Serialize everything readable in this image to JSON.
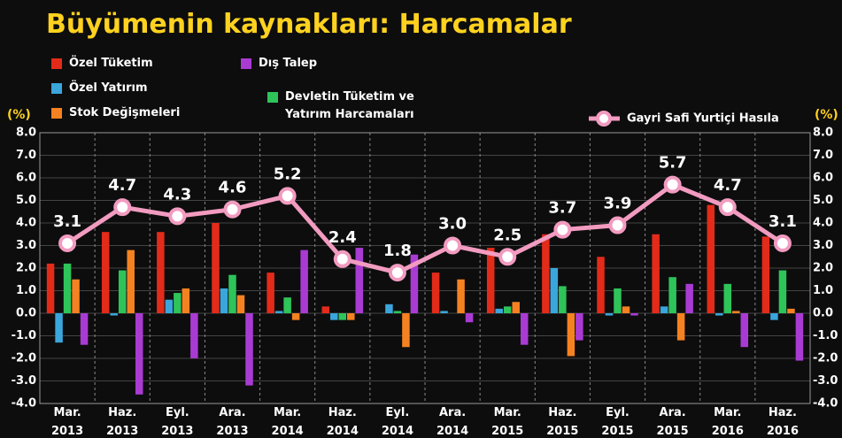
{
  "chart_data": {
    "type": "bar_line",
    "title": "Büyümenin kaynakları: Harcamalar",
    "y_unit": "(%)",
    "categories": [
      "Mar. 2013",
      "Haz. 2013",
      "Eyl. 2013",
      "Ara. 2013",
      "Mar. 2014",
      "Haz. 2014",
      "Eyl. 2014",
      "Ara. 2014",
      "Mar. 2015",
      "Haz. 2015",
      "Eyl. 2015",
      "Ara. 2015",
      "Mar. 2016",
      "Haz. 2016"
    ],
    "ylim": [
      -4,
      8
    ],
    "yticks": [
      {
        "value": -4,
        "label": "-4.0"
      },
      {
        "value": -3,
        "label": "-3.0"
      },
      {
        "value": -2,
        "label": "-2.0"
      },
      {
        "value": -1,
        "label": "-1.0"
      },
      {
        "value": 0,
        "label": "0.0"
      },
      {
        "value": 1,
        "label": "1.0"
      },
      {
        "value": 2,
        "label": "2.0"
      },
      {
        "value": 3,
        "label": "3.0"
      },
      {
        "value": 4,
        "label": "4.0"
      },
      {
        "value": 5,
        "label": "5.0"
      },
      {
        "value": 6,
        "label": "6.0"
      },
      {
        "value": 7,
        "label": "7.0"
      },
      {
        "value": 8,
        "label": "8.0"
      }
    ],
    "grid": true,
    "series": [
      {
        "name": "Özel Tüketim",
        "color": "#e32b1a",
        "values": [
          2.2,
          3.6,
          3.6,
          4.0,
          1.8,
          0.3,
          0.0,
          1.8,
          2.9,
          3.5,
          2.5,
          3.5,
          4.8,
          3.4
        ]
      },
      {
        "name": "Özel Yatırım",
        "color": "#3aa6dc",
        "values": [
          -1.3,
          -0.1,
          0.6,
          1.1,
          0.1,
          -0.3,
          0.4,
          0.1,
          0.2,
          2.0,
          -0.1,
          0.3,
          -0.1,
          -0.3
        ]
      },
      {
        "name": "Devletin Tüketim ve Yatırım Harcamaları",
        "color": "#2ec45a",
        "values": [
          2.2,
          1.9,
          0.9,
          1.7,
          0.7,
          -0.3,
          0.1,
          0.0,
          0.3,
          1.2,
          1.1,
          1.6,
          1.3,
          1.9
        ]
      },
      {
        "name": "Stok Değişmeleri",
        "color": "#f58220",
        "values": [
          1.5,
          2.8,
          1.1,
          0.8,
          -0.3,
          -0.3,
          -1.5,
          1.5,
          0.5,
          -1.9,
          0.3,
          -1.2,
          0.1,
          0.2
        ]
      },
      {
        "name": "Dış Talep",
        "color": "#a93bd3",
        "values": [
          -1.4,
          -3.6,
          -2.0,
          -3.2,
          2.8,
          2.9,
          2.6,
          -0.4,
          -1.4,
          -1.2,
          -0.1,
          1.3,
          -1.5,
          -2.1
        ]
      }
    ],
    "line": {
      "name": "Gayri Safi Yurtiçi Hasıla",
      "color": "#f29bc0",
      "values": [
        3.1,
        4.7,
        4.3,
        4.6,
        5.2,
        2.4,
        1.8,
        3.0,
        2.5,
        3.7,
        3.9,
        5.7,
        4.7,
        3.1
      ],
      "value_labels": [
        "3.1",
        "4.7",
        "4.3",
        "4.6",
        "5.2",
        "2.4",
        "1.8",
        "3.0",
        "2.5",
        "3.7",
        "3.9",
        "5.7",
        "4.7",
        "3.1"
      ]
    }
  }
}
